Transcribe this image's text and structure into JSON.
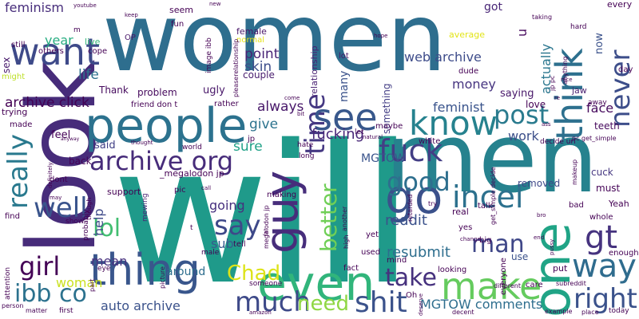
{
  "cloud": {
    "words": [
      {
        "text": "women",
        "color": "#2e6e8e"
      },
      {
        "text": "will",
        "color": "#1f9a8a"
      },
      {
        "text": "men",
        "color": "#26828e"
      },
      {
        "text": "look",
        "color": "#472c7a"
      },
      {
        "text": "people",
        "color": "#2c728e"
      },
      {
        "text": "thing",
        "color": "#39568c"
      },
      {
        "text": "even",
        "color": "#31b57b"
      },
      {
        "text": "know",
        "color": "#26828e"
      },
      {
        "text": "one",
        "color": "#20a486"
      },
      {
        "text": "guy",
        "color": "#472d7b"
      },
      {
        "text": "time",
        "color": "#453882"
      },
      {
        "text": "think",
        "color": "#2d708e"
      },
      {
        "text": "see",
        "color": "#38588c"
      },
      {
        "text": "want",
        "color": "#3e4a89"
      },
      {
        "text": "make",
        "color": "#65cb5e"
      },
      {
        "text": "way",
        "color": "#2f6c8e"
      },
      {
        "text": "go",
        "color": "#3b518b"
      },
      {
        "text": "gt",
        "color": "#46337f"
      },
      {
        "text": "fuck",
        "color": "#433e85"
      },
      {
        "text": "incel",
        "color": "#2d718e"
      },
      {
        "text": "archive org",
        "color": "#472c7a"
      },
      {
        "text": "never",
        "color": "#3d4e8a"
      },
      {
        "text": "good",
        "color": "#2e6f8e"
      },
      {
        "text": "post",
        "color": "#2a7b8e"
      },
      {
        "text": "right",
        "color": "#3b528b"
      },
      {
        "text": "say",
        "color": "#3e4989"
      },
      {
        "text": "really",
        "color": "#29798e"
      },
      {
        "text": "well",
        "color": "#3a548c"
      },
      {
        "text": "girl",
        "color": "#440256"
      },
      {
        "text": "much",
        "color": "#3e4a89"
      },
      {
        "text": "ibb co",
        "color": "#2c728e"
      },
      {
        "text": "take",
        "color": "#46317e"
      },
      {
        "text": "need",
        "color": "#8fd744"
      },
      {
        "text": "shit",
        "color": "#3b528b"
      },
      {
        "text": "better",
        "color": "#70cf57"
      },
      {
        "text": "lol",
        "color": "#42be71"
      },
      {
        "text": "man",
        "color": "#3f4788"
      },
      {
        "text": "Chad",
        "color": "#dde318"
      },
      {
        "text": "feminism",
        "color": "#472d7b"
      },
      {
        "text": "point",
        "color": "#482475"
      },
      {
        "text": "skin",
        "color": "#3d4e8a"
      },
      {
        "text": "archive click",
        "color": "#440154"
      },
      {
        "text": "life",
        "color": "#2d718e"
      },
      {
        "text": "year",
        "color": "#27ad81"
      },
      {
        "text": "web archive",
        "color": "#3e4c8a"
      },
      {
        "text": "feminist",
        "color": "#3a548c"
      },
      {
        "text": "money",
        "color": "#463480"
      },
      {
        "text": "face",
        "color": "#460a5d"
      },
      {
        "text": "actually",
        "color": "#2a768e"
      },
      {
        "text": "always",
        "color": "#48186a"
      },
      {
        "text": "fucking",
        "color": "#482878"
      },
      {
        "text": "work",
        "color": "#3c4f8a"
      },
      {
        "text": "sure",
        "color": "#1fa187"
      },
      {
        "text": "give",
        "color": "#2c738e"
      },
      {
        "text": "MGTOW",
        "color": "#3a548c"
      },
      {
        "text": "reddit",
        "color": "#3b528b"
      },
      {
        "text": "resubmit",
        "color": "#2e6e8e"
      },
      {
        "text": "going",
        "color": "#46307e"
      },
      {
        "text": "help",
        "color": "#3e4989"
      },
      {
        "text": "mean",
        "color": "#46307e"
      },
      {
        "text": "woman",
        "color": "#cae11f"
      },
      {
        "text": "auto archive",
        "color": "#3b528b"
      },
      {
        "text": "MGTOW comments",
        "color": "#2e6e8e"
      },
      {
        "text": "sub",
        "color": "#375b8d"
      },
      {
        "text": "around",
        "color": "#2e6e8e"
      },
      {
        "text": "said",
        "color": "#424086"
      },
      {
        "text": "feel",
        "color": "#440256"
      },
      {
        "text": "back",
        "color": "#440256"
      },
      {
        "text": "Thank",
        "color": "#460b5e"
      },
      {
        "text": "problem",
        "color": "#460a5d"
      },
      {
        "text": "ugly",
        "color": "#481769"
      },
      {
        "text": "couple",
        "color": "#481c6e"
      },
      {
        "text": "saying",
        "color": "#48186a"
      },
      {
        "text": "love",
        "color": "#440154"
      },
      {
        "text": "teeth",
        "color": "#46085c"
      },
      {
        "text": "cuck",
        "color": "#453781"
      },
      {
        "text": "must",
        "color": "#440256"
      },
      {
        "text": "removed",
        "color": "#3e4989"
      },
      {
        "text": "something",
        "color": "#433e85"
      },
      {
        "text": "many",
        "color": "#3b528b"
      },
      {
        "text": "got",
        "color": "#482576"
      },
      {
        "text": "average",
        "color": "#e2e418"
      },
      {
        "text": "now",
        "color": "#3b528b"
      },
      {
        "text": "u",
        "color": "#46085c"
      },
      {
        "text": "every",
        "color": "#440154"
      },
      {
        "text": "jaw",
        "color": "#481f70"
      },
      {
        "text": "OP",
        "color": "#481769"
      },
      {
        "text": "fun",
        "color": "#440154"
      },
      {
        "text": "female",
        "color": "#481668"
      },
      {
        "text": "normal",
        "color": "#e5e419"
      },
      {
        "text": "seem",
        "color": "#440154"
      },
      {
        "text": "relationship",
        "color": "#482173"
      },
      {
        "text": "lot",
        "color": "#481467"
      },
      {
        "text": "still",
        "color": "#440154"
      },
      {
        "text": "others",
        "color": "#440154"
      },
      {
        "text": "cope",
        "color": "#440154"
      },
      {
        "text": "live",
        "color": "#35b779"
      },
      {
        "text": "sex",
        "color": "#481a6c"
      },
      {
        "text": "might",
        "color": "#bddf26"
      },
      {
        "text": "trying",
        "color": "#440154"
      },
      {
        "text": "made",
        "color": "#440154"
      },
      {
        "text": "feel_dup",
        "color": "#440154"
      },
      {
        "text": "support",
        "color": "#440154"
      },
      {
        "text": "pic",
        "color": "#440154"
      },
      {
        "text": "mewing",
        "color": "#482475"
      },
      {
        "text": "make_dup",
        "color": "#440154"
      },
      {
        "text": "talk",
        "color": "#440154"
      },
      {
        "text": "real",
        "color": "#440154"
      },
      {
        "text": "yes",
        "color": "#440154"
      },
      {
        "text": "big",
        "color": "#440154"
      },
      {
        "text": "yet",
        "color": "#440154"
      },
      {
        "text": "use",
        "color": "#3b528b"
      },
      {
        "text": "put",
        "color": "#440154"
      },
      {
        "text": "everyone",
        "color": "#440154"
      },
      {
        "text": "care",
        "color": "#440154"
      },
      {
        "text": "mind",
        "color": "#440154"
      },
      {
        "text": "fact",
        "color": "#440154"
      },
      {
        "text": "used",
        "color": "#440154"
      },
      {
        "text": "Oh",
        "color": "#440154"
      },
      {
        "text": "looking",
        "color": "#440154"
      },
      {
        "text": "tell",
        "color": "#440154"
      },
      {
        "text": "whole",
        "color": "#440154"
      },
      {
        "text": "Yeah",
        "color": "#440154"
      },
      {
        "text": "enough",
        "color": "#440154"
      },
      {
        "text": "bad",
        "color": "#440154"
      },
      {
        "text": "white",
        "color": "#440154"
      },
      {
        "text": "maybe",
        "color": "#440154"
      },
      {
        "text": "let",
        "color": "#440154"
      },
      {
        "text": "friend don t",
        "color": "#440154"
      },
      {
        "text": "rather",
        "color": "#440154"
      },
      {
        "text": "dude",
        "color": "#440154"
      },
      {
        "text": "decide url",
        "color": "#440154"
      },
      {
        "text": "dont",
        "color": "#440154"
      },
      {
        "text": "find",
        "color": "#440154"
      },
      {
        "text": "show",
        "color": "#440154"
      },
      {
        "text": "attention",
        "color": "#440154"
      },
      {
        "text": "person",
        "color": "#440154"
      },
      {
        "text": "first",
        "color": "#440154"
      },
      {
        "text": "matter",
        "color": "#440154"
      },
      {
        "text": "part",
        "color": "#440154"
      },
      {
        "text": "eye",
        "color": "#440154"
      },
      {
        "text": "male",
        "color": "#440154"
      },
      {
        "text": "picture",
        "color": "#440154"
      },
      {
        "text": "someone",
        "color": "#440154"
      },
      {
        "text": "amazon",
        "color": "#440154"
      },
      {
        "text": "making",
        "color": "#440154"
      },
      {
        "text": "world",
        "color": "#440154"
      },
      {
        "text": "hate",
        "color": "#440154"
      },
      {
        "text": "jp",
        "color": "#440154"
      },
      {
        "text": "long",
        "color": "#440154"
      },
      {
        "text": "another",
        "color": "#440154"
      },
      {
        "text": "high",
        "color": "#440154"
      },
      {
        "text": "retarded",
        "color": "#440154"
      },
      {
        "text": "try",
        "color": "#440154"
      },
      {
        "text": "change",
        "color": "#440154"
      },
      {
        "text": "deserve",
        "color": "#440154"
      },
      {
        "text": "decent",
        "color": "#440154"
      },
      {
        "text": "different",
        "color": "#440154"
      },
      {
        "text": "example",
        "color": "#440154"
      },
      {
        "text": "place",
        "color": "#440154"
      },
      {
        "text": "today",
        "color": "#440154"
      },
      {
        "text": "subreddit",
        "color": "#440154"
      },
      {
        "text": "pussy",
        "color": "#440154"
      },
      {
        "text": "end",
        "color": "#440154"
      },
      {
        "text": "bro",
        "color": "#440154"
      },
      {
        "text": "makeup",
        "color": "#440154"
      },
      {
        "text": "pc get_simple",
        "color": "#440154"
      },
      {
        "text": "away",
        "color": "#440154"
      },
      {
        "text": "ass",
        "color": "#440154"
      },
      {
        "text": "nice",
        "color": "#440154"
      },
      {
        "text": "re",
        "color": "#440154"
      },
      {
        "text": "anything",
        "color": "#440154"
      },
      {
        "text": "day",
        "color": "#440154"
      },
      {
        "text": "hard",
        "color": "#440154"
      },
      {
        "text": "taking",
        "color": "#440154"
      },
      {
        "text": "youtube",
        "color": "#440154"
      },
      {
        "text": "keep",
        "color": "#440154"
      },
      {
        "text": "new",
        "color": "#440154"
      },
      {
        "text": "hope",
        "color": "#440154"
      },
      {
        "text": "natural",
        "color": "#440154"
      },
      {
        "text": "thought",
        "color": "#440154"
      },
      {
        "text": "anyway",
        "color": "#440154"
      },
      {
        "text": "may",
        "color": "#440154"
      },
      {
        "text": "definitely",
        "color": "#440154"
      },
      {
        "text": "call",
        "color": "#440154"
      },
      {
        "text": "bit",
        "color": "#440154"
      },
      {
        "text": "come",
        "color": "#440154"
      },
      {
        "text": "pleaserelationship",
        "color": "#440154"
      },
      {
        "text": "image ibb",
        "color": "#440154"
      },
      {
        "text": "megalodon jp",
        "color": "#440154"
      },
      {
        "text": "_megalodon jp",
        "color": "#440154"
      },
      {
        "text": "get_simple decide",
        "color": "#440154"
      },
      {
        "text": "jp pc",
        "color": "#440154"
      },
      {
        "text": "though",
        "color": "#440154"
      },
      {
        "text": "probably",
        "color": "#440154"
      },
      {
        "text": "m",
        "color": "#440154"
      },
      {
        "text": "t",
        "color": "#440154"
      },
      {
        "text": "far",
        "color": "#440154"
      }
    ]
  }
}
